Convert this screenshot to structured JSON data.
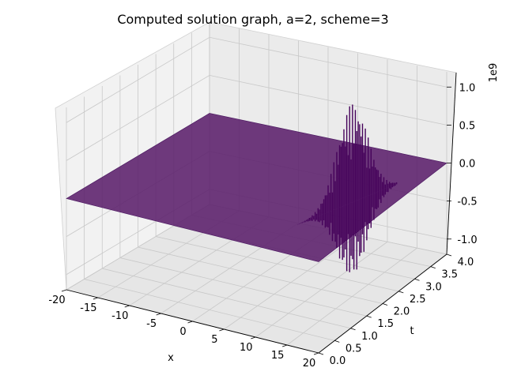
{
  "chart_data": {
    "type": "surface3d",
    "title": "Computed solution graph, a=2, scheme=3",
    "xlabel": "x",
    "ylabel": "t",
    "zlabel": "",
    "z_offset_label": "1e9",
    "xlim": [
      -20,
      20
    ],
    "ylim": [
      0,
      4
    ],
    "zlim": [
      -1.2,
      1.2
    ],
    "x_ticks": [
      "-20",
      "-15",
      "-10",
      "-5",
      "0",
      "5",
      "10",
      "15",
      "20"
    ],
    "y_ticks": [
      "0.0",
      "0.5",
      "1.0",
      "1.5",
      "2.0",
      "2.5",
      "3.0",
      "3.5",
      "4.0"
    ],
    "z_ticks": [
      "-1.0",
      "-0.5",
      "0.0",
      "0.5",
      "1.0"
    ],
    "surface_value": 0,
    "spike": {
      "x_start": 10,
      "x_end": 20,
      "t_start": 1.0,
      "t_end": 3.0,
      "z_max": 1.3,
      "z_min": -0.95
    },
    "colors": {
      "surface": "#5b1f6b",
      "surface_edge": "#4a1560",
      "spike": "#45025a",
      "pane": "#f2f2f2",
      "grid": "#c8c8c8"
    }
  }
}
